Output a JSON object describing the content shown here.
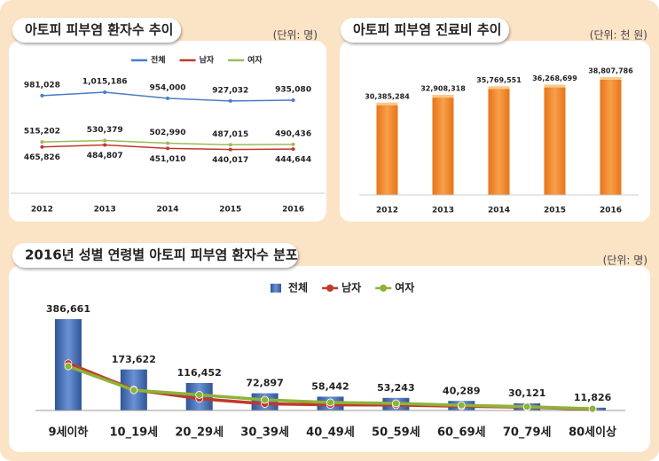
{
  "chart_data": [
    {
      "type": "line",
      "title": "아토피 피부염 환자수 추이",
      "unit": "(단위: 명)",
      "categories": [
        "2012",
        "2013",
        "2014",
        "2015",
        "2016"
      ],
      "series": [
        {
          "name": "전체",
          "color": "#4a7cc7",
          "values": [
            981028,
            1015186,
            954000,
            927032,
            935080
          ],
          "value_labels": [
            "981,028",
            "1,015,186",
            "954,000",
            "927,032",
            "935,080"
          ]
        },
        {
          "name": "남자",
          "color": "#c0392b",
          "values": [
            465826,
            484807,
            451010,
            440017,
            444644
          ],
          "value_labels": [
            "465,826",
            "484,807",
            "451,010",
            "440,017",
            "444,644"
          ]
        },
        {
          "name": "여자",
          "color": "#9bbb59",
          "values": [
            515202,
            530379,
            502990,
            487015,
            490436
          ],
          "value_labels": [
            "515,202",
            "530,379",
            "502,990",
            "487,015",
            "490,436"
          ]
        }
      ]
    },
    {
      "type": "bar",
      "title": "아토피 피부염 진료비 추이",
      "unit": "(단위: 천 원)",
      "categories": [
        "2012",
        "2013",
        "2014",
        "2015",
        "2016"
      ],
      "color": "#f08a24",
      "values": [
        30385284,
        32908318,
        35769551,
        36268699,
        38807786
      ],
      "value_labels": [
        "30,385,284",
        "32,908,318",
        "35,769,551",
        "36,268,699",
        "38,807,786"
      ]
    },
    {
      "type": "combo",
      "title": "2016년 성별 연령별 아토피 피부염 환자수 분포",
      "unit": "(단위: 명)",
      "categories": [
        "9세이하",
        "10_19세",
        "20_29세",
        "30_39세",
        "40_49세",
        "50_59세",
        "60_69세",
        "70_79세",
        "80세이상"
      ],
      "series": [
        {
          "name": "전체",
          "type": "bar",
          "color": "#3d66b0",
          "values": [
            386661,
            173622,
            116452,
            72897,
            58442,
            53243,
            40289,
            30121,
            11826
          ],
          "value_labels": [
            "386,661",
            "173,622",
            "116,452",
            "72,897",
            "58,442",
            "53,243",
            "40,289",
            "30,121",
            "11,826"
          ]
        },
        {
          "name": "남자",
          "type": "line",
          "color": "#c0392b",
          "values": [
            200000,
            88000,
            50000,
            28000,
            24000,
            23000,
            18000,
            14000,
            5000
          ]
        },
        {
          "name": "여자",
          "type": "line",
          "color": "#8db33a",
          "values": [
            187000,
            86000,
            66000,
            45000,
            34000,
            30000,
            22000,
            16000,
            7000
          ]
        }
      ]
    }
  ]
}
